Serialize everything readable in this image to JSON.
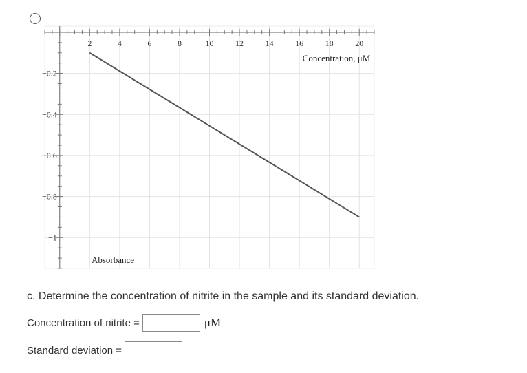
{
  "question": {
    "text": "c. Determine the concentration of nitrite in the sample and its standard deviation."
  },
  "form": {
    "concentration_label": "Concentration of nitrite =",
    "concentration_value": "",
    "concentration_unit": "μM",
    "stdev_label": "Standard deviation =",
    "stdev_value": ""
  },
  "chart_data": {
    "type": "line",
    "xlabel": "Concentration, μM",
    "ylabel": "Absorbance",
    "xlim": [
      -1,
      21
    ],
    "ylim": [
      -1.15,
      0.03
    ],
    "x_ticks": [
      2,
      4,
      6,
      8,
      10,
      12,
      14,
      16,
      18,
      20
    ],
    "y_ticks": [
      -0.2,
      -0.4,
      -0.6,
      -0.8,
      -1
    ],
    "y_tick_labels": [
      "−0.2",
      "−0.4",
      "−0.6",
      "−0.8",
      "−1"
    ],
    "grid": true,
    "series": [
      {
        "x": [
          2,
          20
        ],
        "y": [
          -0.1,
          -0.9
        ],
        "color": "#555555"
      }
    ]
  }
}
